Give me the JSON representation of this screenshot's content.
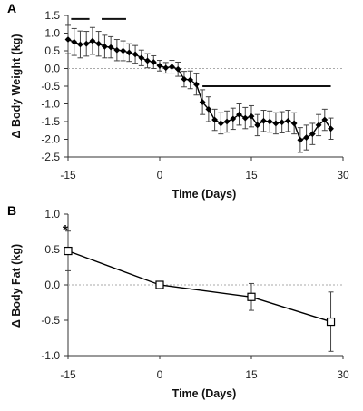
{
  "chart_data": [
    {
      "panel": "A",
      "type": "line",
      "xlabel": "Time (Days)",
      "ylabel": "Δ Body Weight (kg)",
      "xlim": [
        -15,
        30
      ],
      "ylim": [
        -2.5,
        1.5
      ],
      "xticks": [
        "-15",
        "0",
        "15",
        "30"
      ],
      "yticks": [
        "1.5",
        "1.0",
        "0.5",
        "0.0",
        "-0.5",
        "-1.0",
        "-1.5",
        "-2.0",
        "-2.5"
      ],
      "zero_line": "dotted",
      "marker": "filled-diamond",
      "series": [
        {
          "x": [
            -15,
            -14,
            -13,
            -12,
            -11,
            -10,
            -9,
            -8,
            -7,
            -6,
            -5,
            -4,
            -3,
            -2,
            -1,
            0,
            1,
            2,
            3,
            4,
            5,
            6,
            7,
            8,
            9,
            10,
            11,
            12,
            13,
            14,
            15,
            16,
            17,
            18,
            19,
            20,
            21,
            22,
            23,
            24,
            25,
            26,
            27,
            28
          ],
          "y": [
            0.82,
            0.75,
            0.68,
            0.7,
            0.78,
            0.7,
            0.62,
            0.6,
            0.52,
            0.5,
            0.45,
            0.4,
            0.3,
            0.22,
            0.18,
            0.08,
            0.02,
            0.05,
            -0.02,
            -0.3,
            -0.32,
            -0.45,
            -0.95,
            -1.15,
            -1.45,
            -1.55,
            -1.5,
            -1.42,
            -1.3,
            -1.4,
            -1.35,
            -1.6,
            -1.48,
            -1.5,
            -1.55,
            -1.52,
            -1.48,
            -1.55,
            -2.02,
            -1.95,
            -1.85,
            -1.6,
            -1.45,
            -1.7
          ],
          "err": [
            0.4,
            0.38,
            0.38,
            0.35,
            0.38,
            0.35,
            0.32,
            0.3,
            0.3,
            0.28,
            0.25,
            0.25,
            0.22,
            0.2,
            0.18,
            0.15,
            0.15,
            0.18,
            0.2,
            0.22,
            0.25,
            0.3,
            0.35,
            0.35,
            0.3,
            0.3,
            0.3,
            0.3,
            0.3,
            0.3,
            0.3,
            0.3,
            0.3,
            0.3,
            0.3,
            0.3,
            0.3,
            0.3,
            0.35,
            0.35,
            0.3,
            0.3,
            0.3,
            0.3
          ]
        }
      ],
      "significance_bars": [
        {
          "x_start": -14.5,
          "x_end": -11.5,
          "y": 1.4
        },
        {
          "x_start": -9.5,
          "x_end": -5.5,
          "y": 1.4
        },
        {
          "x_start": 7,
          "x_end": 28,
          "y": -0.5
        }
      ]
    },
    {
      "panel": "B",
      "type": "line",
      "xlabel": "Time (Days)",
      "ylabel": "Δ Body Fat (kg)",
      "xlim": [
        -15,
        30
      ],
      "ylim": [
        -1.0,
        1.0
      ],
      "xticks": [
        "-15",
        "0",
        "15",
        "30"
      ],
      "yticks": [
        "1.0",
        "0.5",
        "0.0",
        "-0.5",
        "-1.0"
      ],
      "zero_line": "dotted",
      "marker": "open-square",
      "series": [
        {
          "x": [
            -15,
            0,
            15,
            28
          ],
          "y": [
            0.48,
            0.0,
            -0.17,
            -0.52
          ],
          "err": [
            0.28,
            0.0,
            0.19,
            0.42
          ]
        }
      ],
      "annotations": [
        {
          "text": "*",
          "x": -15
        }
      ]
    }
  ]
}
